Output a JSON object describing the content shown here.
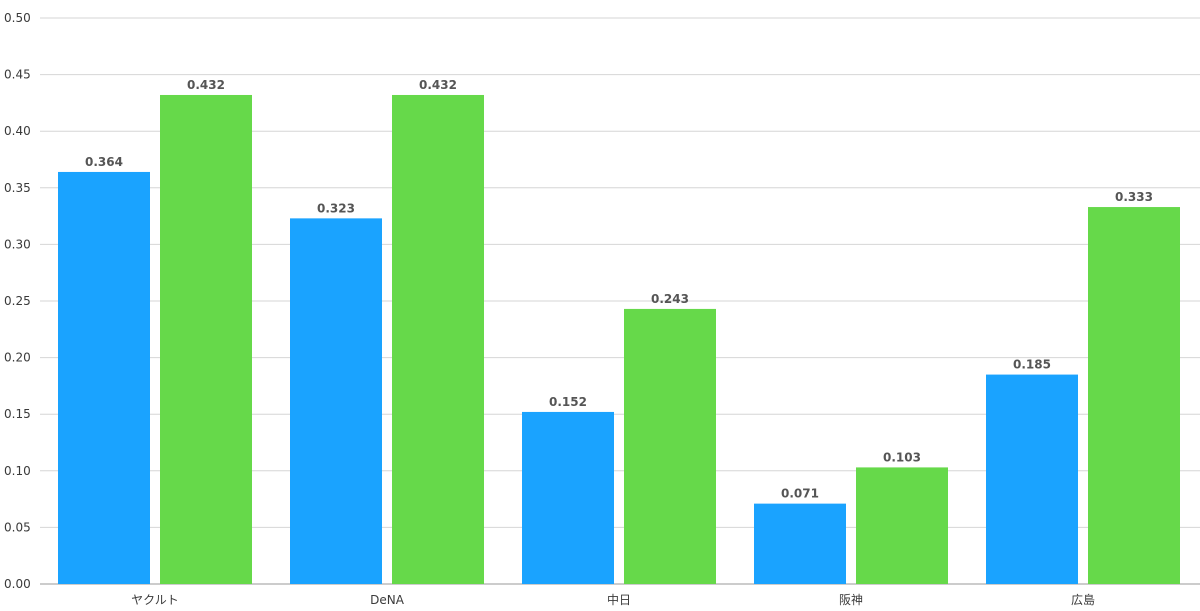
{
  "chart_data": {
    "type": "bar",
    "categories": [
      "ヤクルト",
      "DeNA",
      "中日",
      "阪神",
      "広島"
    ],
    "series": [
      {
        "color": "#1aa3ff",
        "values": [
          0.364,
          0.323,
          0.152,
          0.071,
          0.185
        ],
        "labels": [
          "0.364",
          "0.323",
          "0.152",
          "0.071",
          "0.185"
        ]
      },
      {
        "color": "#66d94a",
        "values": [
          0.432,
          0.432,
          0.243,
          0.103,
          0.333
        ],
        "labels": [
          "0.432",
          "0.432",
          "0.243",
          "0.103",
          "0.333"
        ]
      }
    ],
    "ylim": [
      0,
      0.5
    ],
    "yticks": [
      "0.00",
      "0.05",
      "0.10",
      "0.15",
      "0.20",
      "0.25",
      "0.30",
      "0.35",
      "0.40",
      "0.45",
      "0.50"
    ],
    "grid": true,
    "title": "",
    "xlabel": "",
    "ylabel": ""
  }
}
